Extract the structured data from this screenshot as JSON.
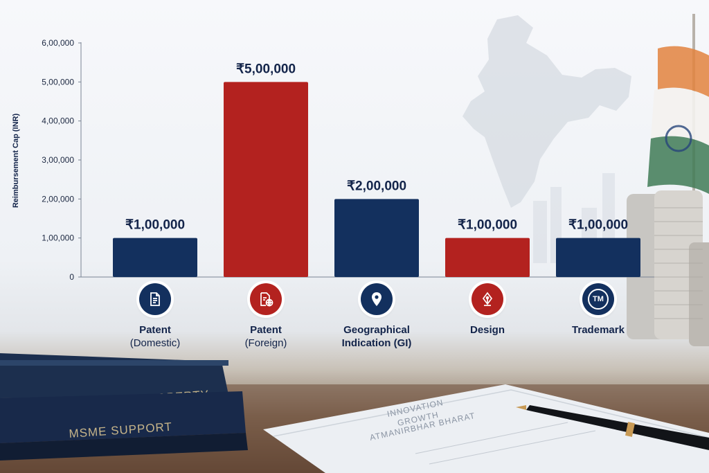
{
  "colors": {
    "navy": "#13305e",
    "red": "#b3221f",
    "text": "#13244a"
  },
  "chart_data": {
    "type": "bar",
    "ylabel": "Reimbursement Cap (INR)",
    "ylim": [
      0,
      600000
    ],
    "yticks": [
      {
        "value": 0,
        "label": "0"
      },
      {
        "value": 100000,
        "label": "1,00,000"
      },
      {
        "value": 200000,
        "label": "2,00,000"
      },
      {
        "value": 300000,
        "label": "3,00,000"
      },
      {
        "value": 400000,
        "label": "4,00,000"
      },
      {
        "value": 500000,
        "label": "5,00,000"
      },
      {
        "value": 600000,
        "label": "6,00,000"
      }
    ],
    "categories": [
      {
        "line1": "Patent",
        "line2": "(Domestic)",
        "value": 100000,
        "value_label": "₹1,00,000",
        "color": "#13305e",
        "icon": "document-icon"
      },
      {
        "line1": "Patent",
        "line2": "(Foreign)",
        "value": 500000,
        "value_label": "₹5,00,000",
        "color": "#b3221f",
        "icon": "globe-document-icon"
      },
      {
        "line1": "Geographical",
        "line2": "Indication (GI)",
        "value": 200000,
        "value_label": "₹2,00,000",
        "color": "#13305e",
        "icon": "location-pin-icon"
      },
      {
        "line1": "Design",
        "line2": "",
        "value": 100000,
        "value_label": "₹1,00,000",
        "color": "#b3221f",
        "icon": "pen-nib-icon"
      },
      {
        "line1": "Trademark",
        "line2": "",
        "value": 100000,
        "value_label": "₹1,00,000",
        "color": "#13305e",
        "icon": "trademark-icon",
        "icon_text": "TM"
      }
    ],
    "grid": false,
    "legend": "none"
  },
  "scene": {
    "book_top_title": "INTELLECTUAL PROPERTY",
    "book_bottom_title": "MSME SUPPORT",
    "paper_lines": [
      "INNOVATION",
      "GROWTH",
      "ATMANIRBHAR BHARAT"
    ]
  }
}
